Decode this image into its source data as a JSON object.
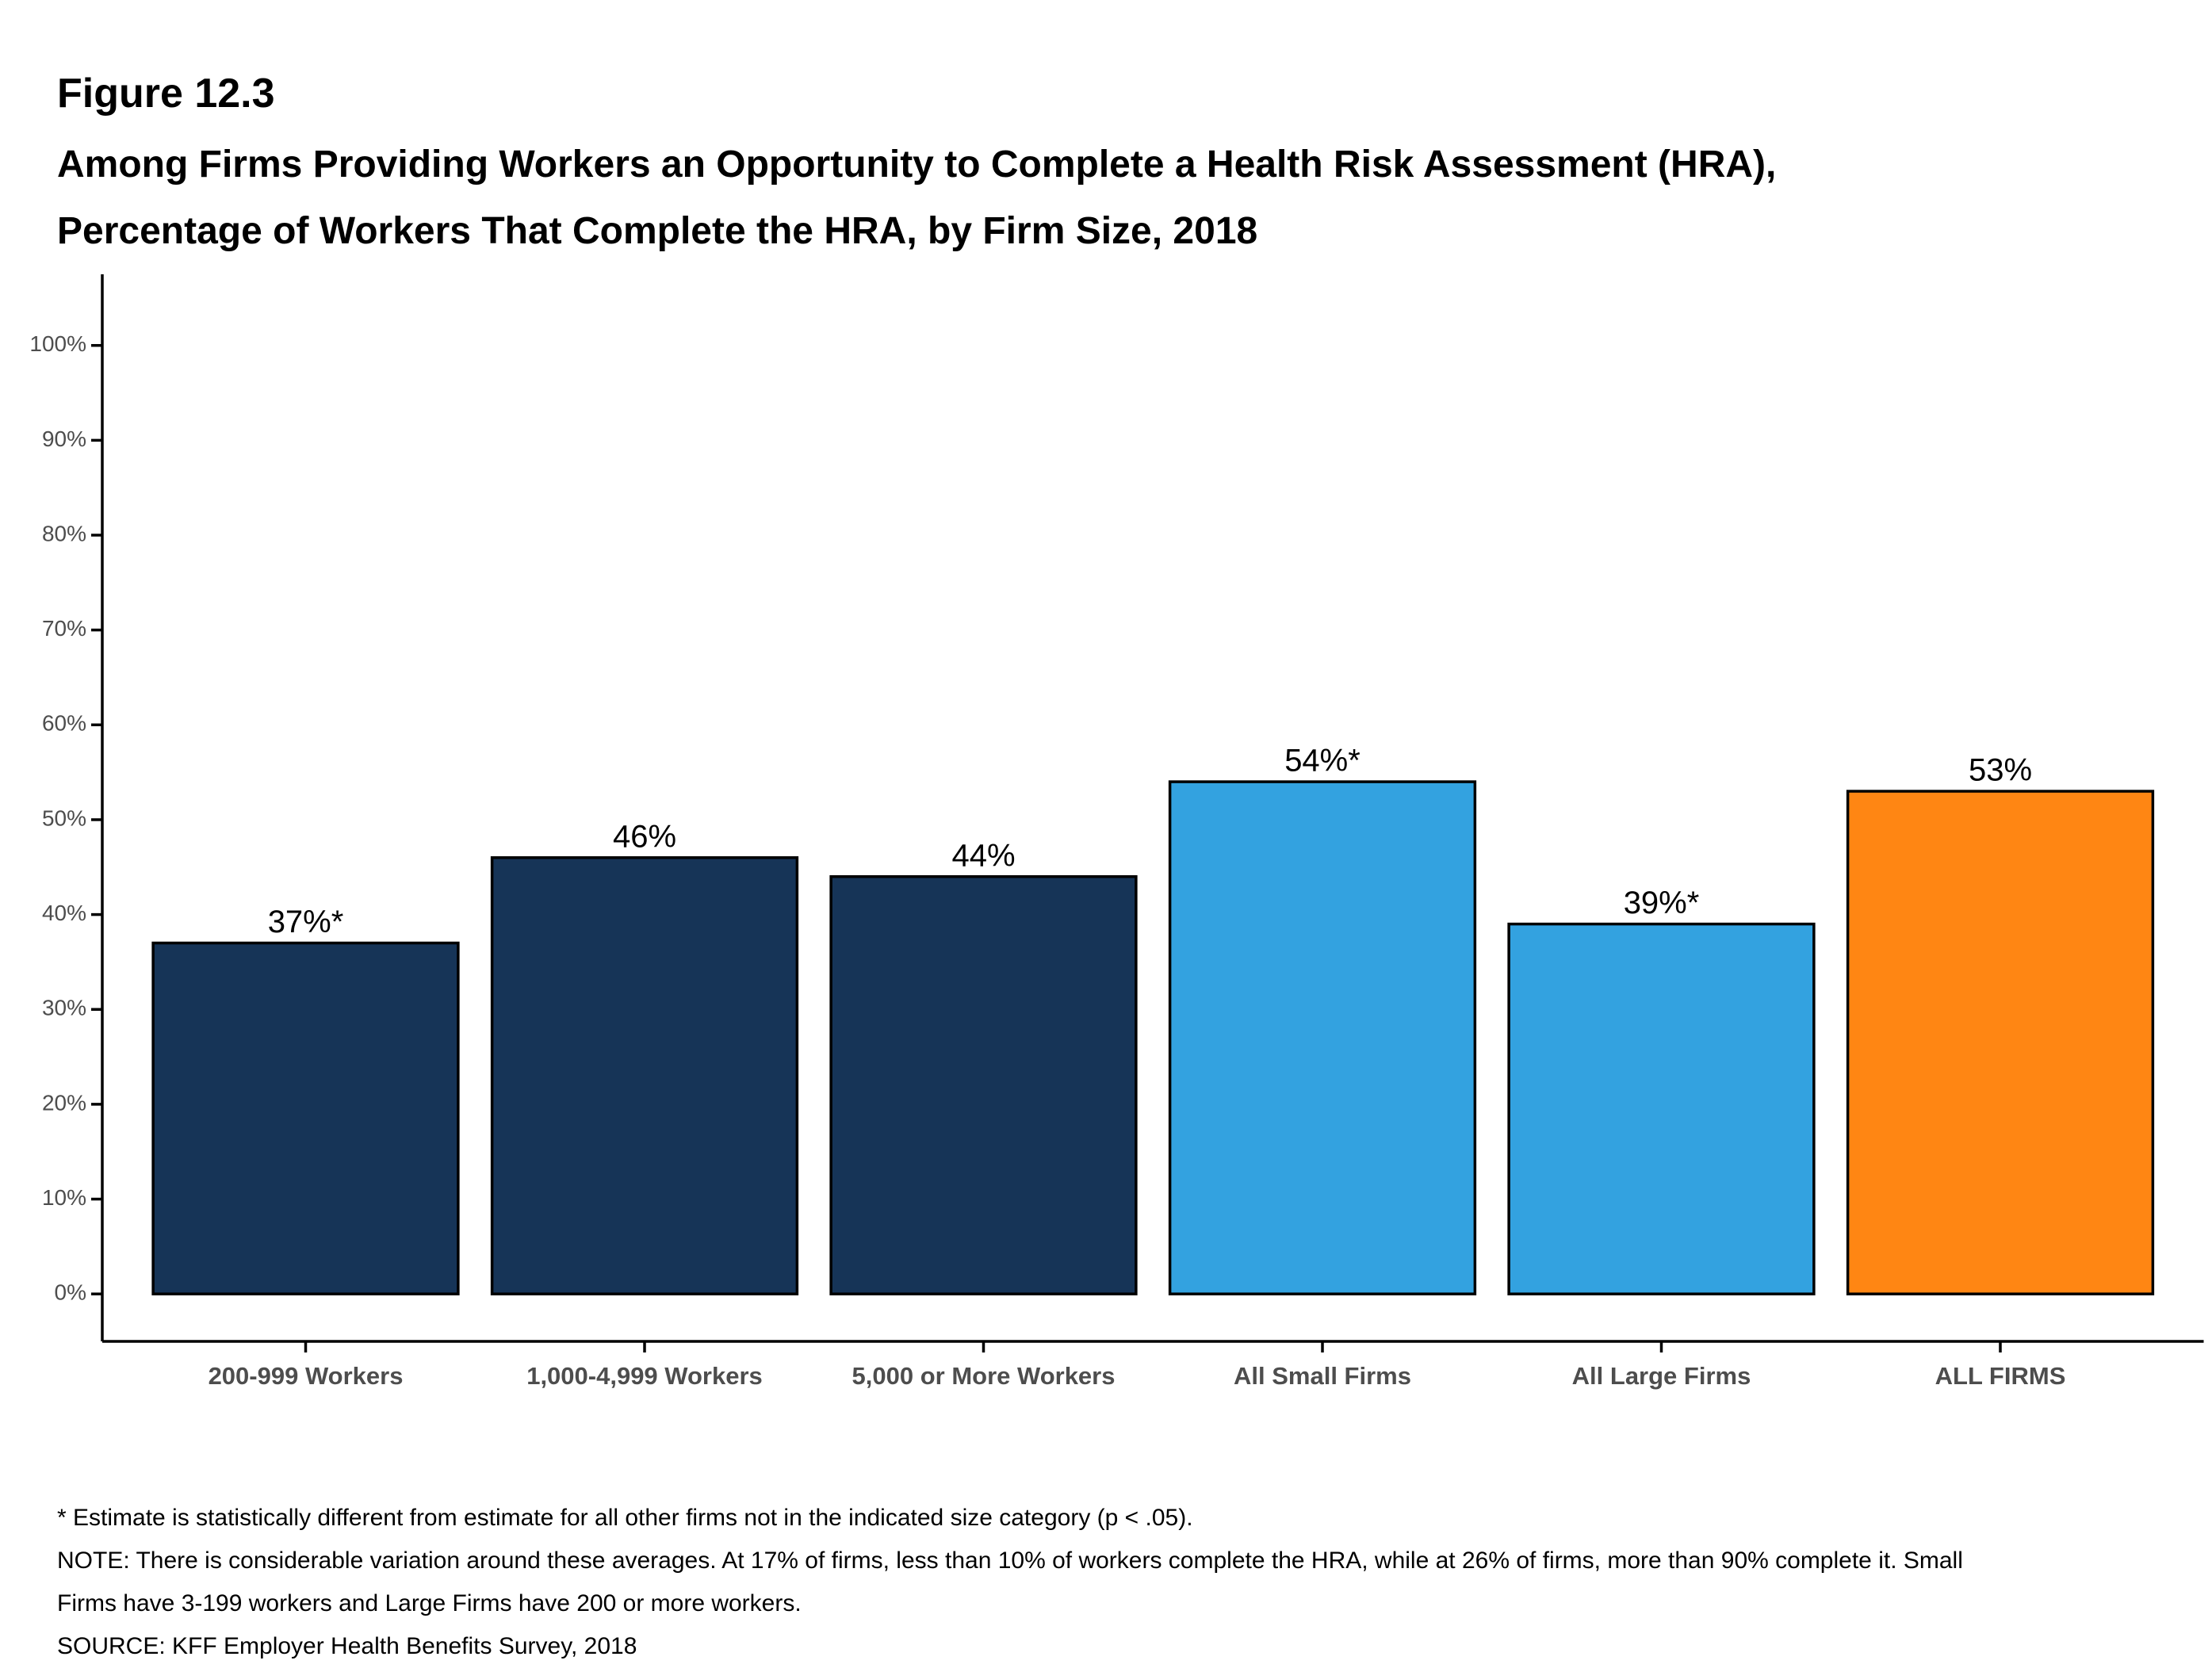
{
  "chart_data": {
    "type": "bar",
    "figure_label": "Figure 12.3",
    "title": [
      "Among Firms Providing Workers an Opportunity to Complete a Health Risk Assessment (HRA),",
      "Percentage of Workers That Complete the HRA, by Firm Size, 2018"
    ],
    "categories": [
      "200-999 Workers",
      "1,000-4,999 Workers",
      "5,000 or More Workers",
      "All Small Firms",
      "All Large Firms",
      "ALL FIRMS"
    ],
    "values": [
      37,
      46,
      44,
      54,
      39,
      53
    ],
    "value_labels": [
      "37%*",
      "46%",
      "44%",
      "54%*",
      "39%*",
      "53%"
    ],
    "colors": [
      "#163457",
      "#163457",
      "#163457",
      "#33a2e0",
      "#33a2e0",
      "#ff8613"
    ],
    "ylim": [
      -5,
      107.5
    ],
    "yticks": [
      {
        "value": 0,
        "label": "0%"
      },
      {
        "value": 10,
        "label": "10%"
      },
      {
        "value": 20,
        "label": "20%"
      },
      {
        "value": 30,
        "label": "30%"
      },
      {
        "value": 40,
        "label": "40%"
      },
      {
        "value": 50,
        "label": "50%"
      },
      {
        "value": 60,
        "label": "60%"
      },
      {
        "value": 70,
        "label": "70%"
      },
      {
        "value": 80,
        "label": "80%"
      },
      {
        "value": 90,
        "label": "90%"
      },
      {
        "value": 100,
        "label": "100%"
      }
    ],
    "notes": [
      "* Estimate is statistically different from estimate for all other firms not in the indicated size category (p < .05).",
      "NOTE: There is considerable variation around these averages. At 17% of firms, less than 10% of workers complete the HRA, while at 26% of firms, more than 90% complete it. Small Firms have 3-199 workers and Large Firms have 200 or more workers.",
      "SOURCE: KFF Employer Health Benefits Survey, 2018"
    ]
  }
}
